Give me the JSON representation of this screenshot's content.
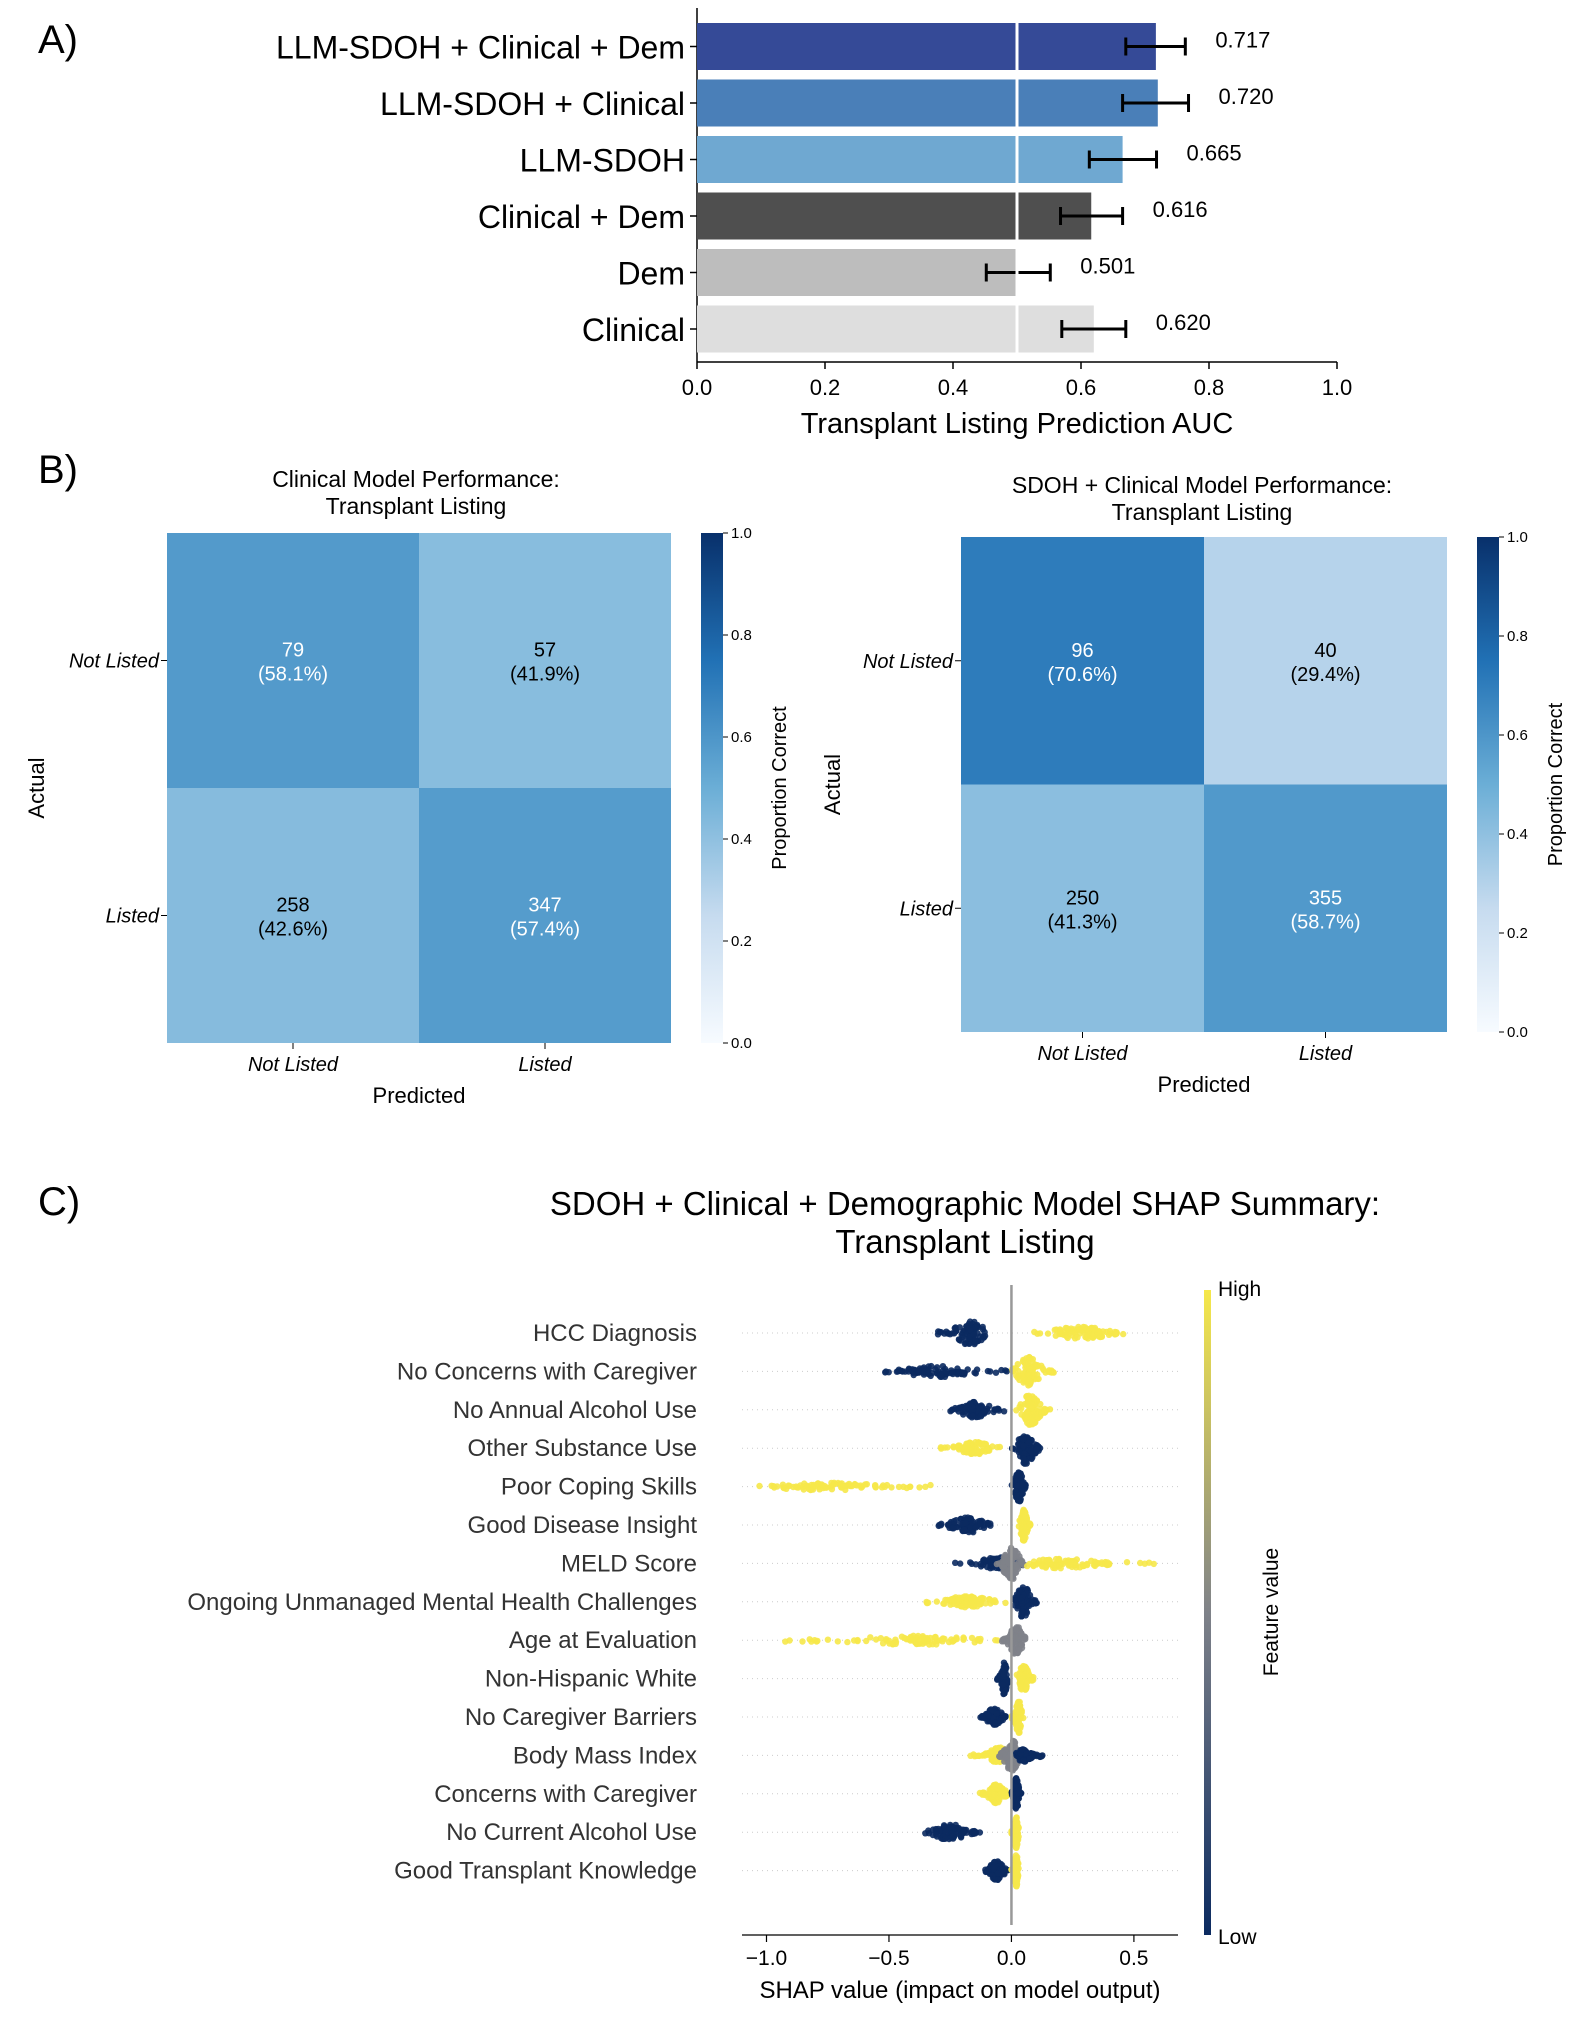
{
  "panel_labels": {
    "a": "A)",
    "b": "B)",
    "c": "C)"
  },
  "chart_data": [
    {
      "id": "panel-a",
      "type": "bar",
      "orientation": "horizontal",
      "categories": [
        "LLM-SDOH + Clinical + Dem",
        "LLM-SDOH + Clinical",
        "LLM-SDOH",
        "Clinical + Dem",
        "Dem",
        "Clinical"
      ],
      "values": [
        0.717,
        0.72,
        0.665,
        0.616,
        0.501,
        0.62
      ],
      "value_labels": [
        "0.717",
        "0.720",
        "0.665",
        "0.616",
        "0.501",
        "0.620"
      ],
      "error_low": [
        0.67,
        0.665,
        0.613,
        0.568,
        0.452,
        0.57
      ],
      "error_high": [
        0.763,
        0.768,
        0.718,
        0.665,
        0.552,
        0.67
      ],
      "colors": [
        "#354a97",
        "#4a7fb8",
        "#6fa8d1",
        "#4f4f4f",
        "#bdbdbd",
        "#dedede"
      ],
      "reference_line": 0.5,
      "xlabel": "Transplant Listing Prediction AUC",
      "xlim": [
        0.0,
        1.0
      ],
      "xticks": [
        "0.0",
        "0.2",
        "0.4",
        "0.6",
        "0.8",
        "1.0"
      ]
    },
    {
      "id": "panel-b-left",
      "type": "heatmap",
      "title": [
        "Clinical Model Performance:",
        "Transplant Listing"
      ],
      "row_labels": [
        "Not Listed",
        "Listed"
      ],
      "col_labels": [
        "Not Listed",
        "Listed"
      ],
      "counts": [
        [
          "79",
          "57"
        ],
        [
          "258",
          "347"
        ]
      ],
      "percents": [
        [
          "(58.1%)",
          "(41.9%)"
        ],
        [
          "(42.6%)",
          "(57.4%)"
        ]
      ],
      "proportions": [
        [
          0.581,
          0.419
        ],
        [
          0.426,
          0.574
        ]
      ],
      "xlabel": "Predicted",
      "ylabel": "Actual",
      "colorbar_label": "Proportion Correct",
      "colorbar_ticks": [
        "0.0",
        "0.2",
        "0.4",
        "0.6",
        "0.8",
        "1.0"
      ]
    },
    {
      "id": "panel-b-right",
      "type": "heatmap",
      "title": [
        "SDOH + Clinical Model Performance:",
        "Transplant Listing"
      ],
      "row_labels": [
        "Not Listed",
        "Listed"
      ],
      "col_labels": [
        "Not Listed",
        "Listed"
      ],
      "counts": [
        [
          "96",
          "40"
        ],
        [
          "250",
          "355"
        ]
      ],
      "percents": [
        [
          "(70.6%)",
          "(29.4%)"
        ],
        [
          "(41.3%)",
          "(58.7%)"
        ]
      ],
      "proportions": [
        [
          0.706,
          0.294
        ],
        [
          0.413,
          0.587
        ]
      ],
      "xlabel": "Predicted",
      "ylabel": "Actual",
      "colorbar_label": "Proportion Correct",
      "colorbar_ticks": [
        "0.0",
        "0.2",
        "0.4",
        "0.6",
        "0.8",
        "1.0"
      ]
    },
    {
      "id": "panel-c",
      "type": "scatter",
      "subtype": "shap-beeswarm",
      "title": [
        "SDOH + Clinical + Demographic Model SHAP Summary:",
        "Transplant Listing"
      ],
      "xlabel": "SHAP value (impact on model output)",
      "xlim": [
        -1.1,
        0.68
      ],
      "xticks": [
        "−1.0",
        "−0.5",
        "0.0",
        "0.5"
      ],
      "xtick_values": [
        -1.0,
        -0.5,
        0.0,
        0.5
      ],
      "colorbar_label": "Feature value",
      "colorbar_high": "High",
      "colorbar_low": "Low",
      "features": [
        {
          "name": "HCC Diagnosis",
          "groups": [
            {
              "c": "low",
              "lo": -0.3,
              "hi": -0.1,
              "center": -0.17,
              "width": 0.8
            },
            {
              "c": "high",
              "lo": 0.08,
              "hi": 0.48,
              "center": 0.28,
              "width": 0.4
            }
          ]
        },
        {
          "name": "No Concerns with Caregiver",
          "groups": [
            {
              "c": "low",
              "lo": -0.53,
              "hi": -0.01,
              "center": -0.3,
              "width": 0.35
            },
            {
              "c": "high",
              "lo": 0.0,
              "hi": 0.18,
              "center": 0.07,
              "width": 0.9
            }
          ]
        },
        {
          "name": "No Annual Alcohol Use",
          "groups": [
            {
              "c": "low",
              "lo": -0.25,
              "hi": -0.03,
              "center": -0.15,
              "width": 0.5
            },
            {
              "c": "high",
              "lo": 0.02,
              "hi": 0.16,
              "center": 0.08,
              "width": 1.0
            }
          ]
        },
        {
          "name": "Other Substance Use",
          "groups": [
            {
              "c": "high",
              "lo": -0.29,
              "hi": -0.04,
              "center": -0.15,
              "width": 0.4
            },
            {
              "c": "low",
              "lo": 0.0,
              "hi": 0.12,
              "center": 0.06,
              "width": 1.0
            }
          ]
        },
        {
          "name": "Poor Coping Skills",
          "groups": [
            {
              "c": "high",
              "lo": -1.03,
              "hi": -0.27,
              "center": -0.75,
              "width": 0.25
            },
            {
              "c": "low",
              "lo": 0.0,
              "hi": 0.06,
              "center": 0.03,
              "width": 1.0
            }
          ]
        },
        {
          "name": "Good Disease Insight",
          "groups": [
            {
              "c": "low",
              "lo": -0.3,
              "hi": -0.07,
              "center": -0.18,
              "width": 0.5
            },
            {
              "c": "high",
              "lo": 0.03,
              "hi": 0.08,
              "center": 0.05,
              "width": 1.0
            }
          ]
        },
        {
          "name": "MELD Score",
          "groups": [
            {
              "c": "low",
              "lo": -0.23,
              "hi": 0.05,
              "center": -0.05,
              "width": 0.4
            },
            {
              "c": "mid",
              "lo": -0.06,
              "hi": 0.06,
              "center": 0.0,
              "width": 1.0
            },
            {
              "c": "high",
              "lo": 0.05,
              "hi": 0.62,
              "center": 0.2,
              "width": 0.3
            }
          ]
        },
        {
          "name": "Ongoing Unmanaged Mental Health Challenges",
          "groups": [
            {
              "c": "high",
              "lo": -0.35,
              "hi": -0.02,
              "center": -0.18,
              "width": 0.35
            },
            {
              "c": "low",
              "lo": 0.0,
              "hi": 0.11,
              "center": 0.05,
              "width": 1.0
            }
          ]
        },
        {
          "name": "Age at Evaluation",
          "groups": [
            {
              "c": "high",
              "lo": -0.95,
              "hi": -0.02,
              "center": -0.4,
              "width": 0.3
            },
            {
              "c": "mid",
              "lo": -0.04,
              "hi": 0.06,
              "center": 0.02,
              "width": 0.9
            }
          ]
        },
        {
          "name": "Non-Hispanic White",
          "groups": [
            {
              "c": "low",
              "lo": -0.06,
              "hi": -0.01,
              "center": -0.03,
              "width": 1.0
            },
            {
              "c": "high",
              "lo": 0.02,
              "hi": 0.1,
              "center": 0.05,
              "width": 0.8
            }
          ]
        },
        {
          "name": "No Caregiver Barriers",
          "groups": [
            {
              "c": "low",
              "lo": -0.13,
              "hi": -0.02,
              "center": -0.07,
              "width": 0.6
            },
            {
              "c": "high",
              "lo": 0.0,
              "hi": 0.05,
              "center": 0.03,
              "width": 1.0
            }
          ]
        },
        {
          "name": "Body Mass Index",
          "groups": [
            {
              "c": "high",
              "lo": -0.17,
              "hi": -0.02,
              "center": -0.05,
              "width": 0.5
            },
            {
              "c": "mid",
              "lo": -0.05,
              "hi": 0.05,
              "center": 0.0,
              "width": 1.0
            },
            {
              "c": "low",
              "lo": 0.02,
              "hi": 0.13,
              "center": 0.05,
              "width": 0.4
            }
          ]
        },
        {
          "name": "Concerns with Caregiver",
          "groups": [
            {
              "c": "high",
              "lo": -0.13,
              "hi": -0.01,
              "center": -0.06,
              "width": 0.6
            },
            {
              "c": "low",
              "lo": 0.0,
              "hi": 0.04,
              "center": 0.02,
              "width": 1.0
            }
          ]
        },
        {
          "name": "No Current Alcohol Use",
          "groups": [
            {
              "c": "low",
              "lo": -0.36,
              "hi": -0.12,
              "center": -0.25,
              "width": 0.5
            },
            {
              "c": "high",
              "lo": 0.0,
              "hi": 0.03,
              "center": 0.02,
              "width": 1.0
            }
          ]
        },
        {
          "name": "Good Transplant Knowledge",
          "groups": [
            {
              "c": "low",
              "lo": -0.11,
              "hi": -0.01,
              "center": -0.06,
              "width": 0.6
            },
            {
              "c": "high",
              "lo": 0.0,
              "hi": 0.03,
              "center": 0.02,
              "width": 1.0
            }
          ]
        }
      ]
    }
  ],
  "colors": {
    "shap_high": "#f6e84a",
    "shap_mid": "#7f8289",
    "shap_low": "#0b2a60",
    "ref_line": "#ffffff",
    "zero_line": "#999999"
  }
}
